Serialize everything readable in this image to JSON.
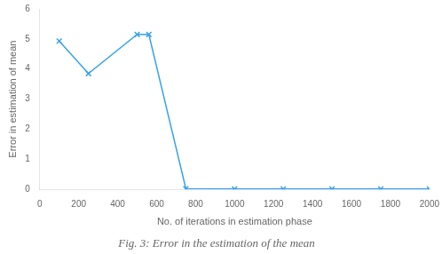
{
  "chart_data": {
    "type": "line",
    "x": [
      100,
      250,
      500,
      560,
      750,
      1000,
      1250,
      1500,
      1750,
      2000
    ],
    "values": [
      4.93,
      3.85,
      5.15,
      5.15,
      0.02,
      0.01,
      0.01,
      0.01,
      0.01,
      0.01
    ],
    "marker": "x",
    "xlabel": "No. of iterations in estimation phase",
    "ylabel": "Error in estimation of mean",
    "xlim": [
      0,
      2000
    ],
    "ylim": [
      0,
      6
    ],
    "xticks": [
      0,
      200,
      400,
      600,
      800,
      1000,
      1200,
      1400,
      1600,
      1800,
      2000
    ],
    "yticks": [
      0,
      1,
      2,
      3,
      4,
      5,
      6
    ],
    "grid": false,
    "caption": "Fig. 3: Error in the estimation of the mean"
  }
}
